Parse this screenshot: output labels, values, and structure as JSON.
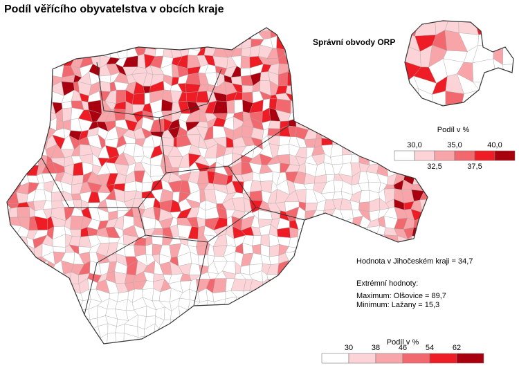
{
  "title": "Podíl věřícího obyvatelstva v obcích kraje",
  "inset_title": "Správní obvody ORP",
  "legend_top": {
    "title": "Podíl v %",
    "breaks": [
      "30,0",
      "32,5",
      "35,0",
      "37,5",
      "40,0"
    ],
    "colors": [
      "#ffffff",
      "#fcd3d6",
      "#f8a5aa",
      "#f2686f",
      "#ee1c24",
      "#a8000f"
    ]
  },
  "legend_bottom": {
    "title": "Podíl v %",
    "breaks": [
      "30",
      "38",
      "46",
      "54",
      "62"
    ],
    "colors": [
      "#ffffff",
      "#fcd3d6",
      "#f8a5aa",
      "#f2686f",
      "#ee1c24",
      "#a8000f"
    ]
  },
  "notes": [
    "Hodnota v Jihočeském kraji = 34,7",
    "Extrémní hodnoty:",
    "Maximum: Olšovice = 89,7",
    "Minimum: Lažany = 15,3"
  ]
}
